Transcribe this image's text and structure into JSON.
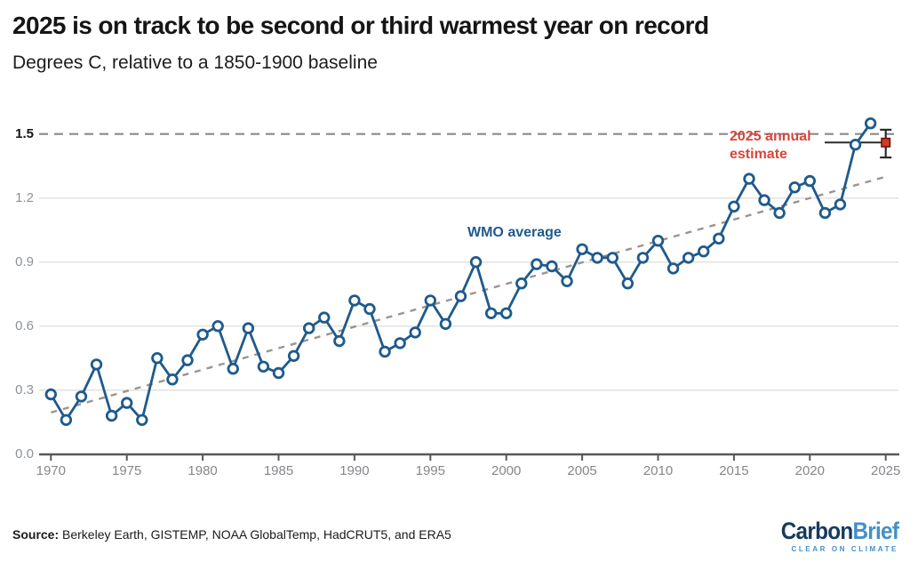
{
  "header": {
    "title": "2025 is on track to be second or third warmest year on record",
    "subtitle": "Degrees C, relative to a 1850-1900 baseline"
  },
  "chart_data": {
    "type": "line",
    "title": "2025 is on track to be second or third warmest year on record",
    "subtitle": "Degrees C, relative to a 1850-1900 baseline",
    "xlabel": "",
    "ylabel": "Degrees C relative to 1850-1900",
    "xlim": [
      1970,
      2025
    ],
    "ylim": [
      0,
      1.6
    ],
    "grid": "horizontal",
    "series": [
      {
        "name": "WMO average",
        "x": [
          1970,
          1971,
          1972,
          1973,
          1974,
          1975,
          1976,
          1977,
          1978,
          1979,
          1980,
          1981,
          1982,
          1983,
          1984,
          1985,
          1986,
          1987,
          1988,
          1989,
          1990,
          1991,
          1992,
          1993,
          1994,
          1995,
          1996,
          1997,
          1998,
          1999,
          2000,
          2001,
          2002,
          2003,
          2004,
          2005,
          2006,
          2007,
          2008,
          2009,
          2010,
          2011,
          2012,
          2013,
          2014,
          2015,
          2016,
          2017,
          2018,
          2019,
          2020,
          2021,
          2022,
          2023,
          2024
        ],
        "y": [
          0.28,
          0.16,
          0.27,
          0.42,
          0.18,
          0.24,
          0.16,
          0.45,
          0.35,
          0.44,
          0.56,
          0.6,
          0.4,
          0.59,
          0.41,
          0.38,
          0.46,
          0.59,
          0.64,
          0.53,
          0.72,
          0.68,
          0.48,
          0.52,
          0.57,
          0.72,
          0.61,
          0.74,
          0.9,
          0.66,
          0.66,
          0.8,
          0.89,
          0.88,
          0.81,
          0.96,
          0.92,
          0.92,
          0.8,
          0.92,
          1.0,
          0.87,
          0.92,
          0.95,
          1.01,
          1.16,
          1.29,
          1.19,
          1.13,
          1.25,
          1.28,
          1.13,
          1.17,
          1.45,
          1.55
        ]
      }
    ],
    "estimate_2025": {
      "year": 2025,
      "value": 1.46,
      "low": 1.39,
      "high": 1.52
    },
    "trend": {
      "x1": 1970,
      "y1": 0.195,
      "x2": 2025,
      "y2": 1.3
    },
    "x_ticks": [
      1970,
      1975,
      1980,
      1985,
      1990,
      1995,
      2000,
      2005,
      2010,
      2015,
      2020,
      2025
    ],
    "y_ticks": [
      "0.0",
      "0.3",
      "0.6",
      "0.9",
      "1.2",
      "1.5"
    ],
    "highlight_y": 1.5,
    "annotations": {
      "series_label": "WMO average",
      "estimate_label": "2025 annual estimate"
    },
    "colors": {
      "line": "#1f5a8c",
      "marker_fill": "#ffffff",
      "trend": "#9c948e",
      "grid": "#e2e2e2",
      "threshold": "#8a8a8a",
      "axis": "#58585a",
      "estimate_fill": "#d23b2b",
      "estimate_border": "#6e120a",
      "errorbar": "#2b2b2b",
      "annotation_red": "#d8453a",
      "annotation_blue": "#1f5a8c"
    },
    "legend": "none"
  },
  "footer": {
    "source_bold": "Source:",
    "source_rest": " Berkeley Earth, GISTEMP, NOAA GlobalTemp, HadCRUT5, and ERA5",
    "logo_part1": "Carbon",
    "logo_part2": "Brief",
    "logo_tagline": "CLEAR ON CLIMATE"
  }
}
